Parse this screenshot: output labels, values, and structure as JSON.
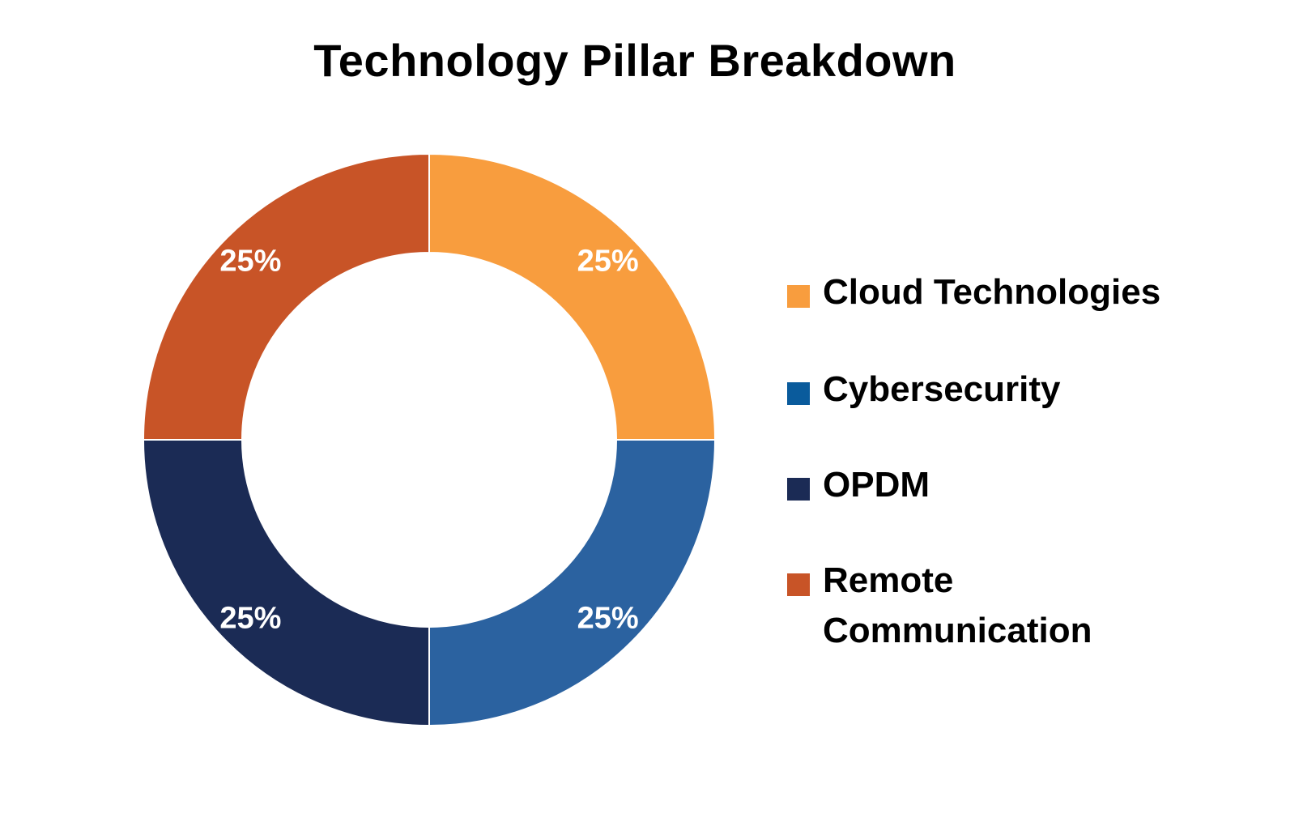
{
  "chart_data": {
    "type": "pie",
    "variant": "donut",
    "title": "Technology Pillar Breakdown",
    "categories": [
      "Cloud Technologies",
      "Cybersecurity",
      "OPDM",
      "Remote Communication"
    ],
    "values": [
      25,
      25,
      25,
      25
    ],
    "data_labels": [
      "25%",
      "25%",
      "25%",
      "25%"
    ],
    "colors": [
      "#F89D3E",
      "#2B62A0",
      "#1B2B55",
      "#C85427"
    ],
    "legend_swatch_colors": [
      "#F89D3E",
      "#0A5B9C",
      "#1B2B55",
      "#C85427"
    ],
    "legend_position": "right",
    "start_angle": "12 o'clock",
    "direction": "clockwise"
  }
}
